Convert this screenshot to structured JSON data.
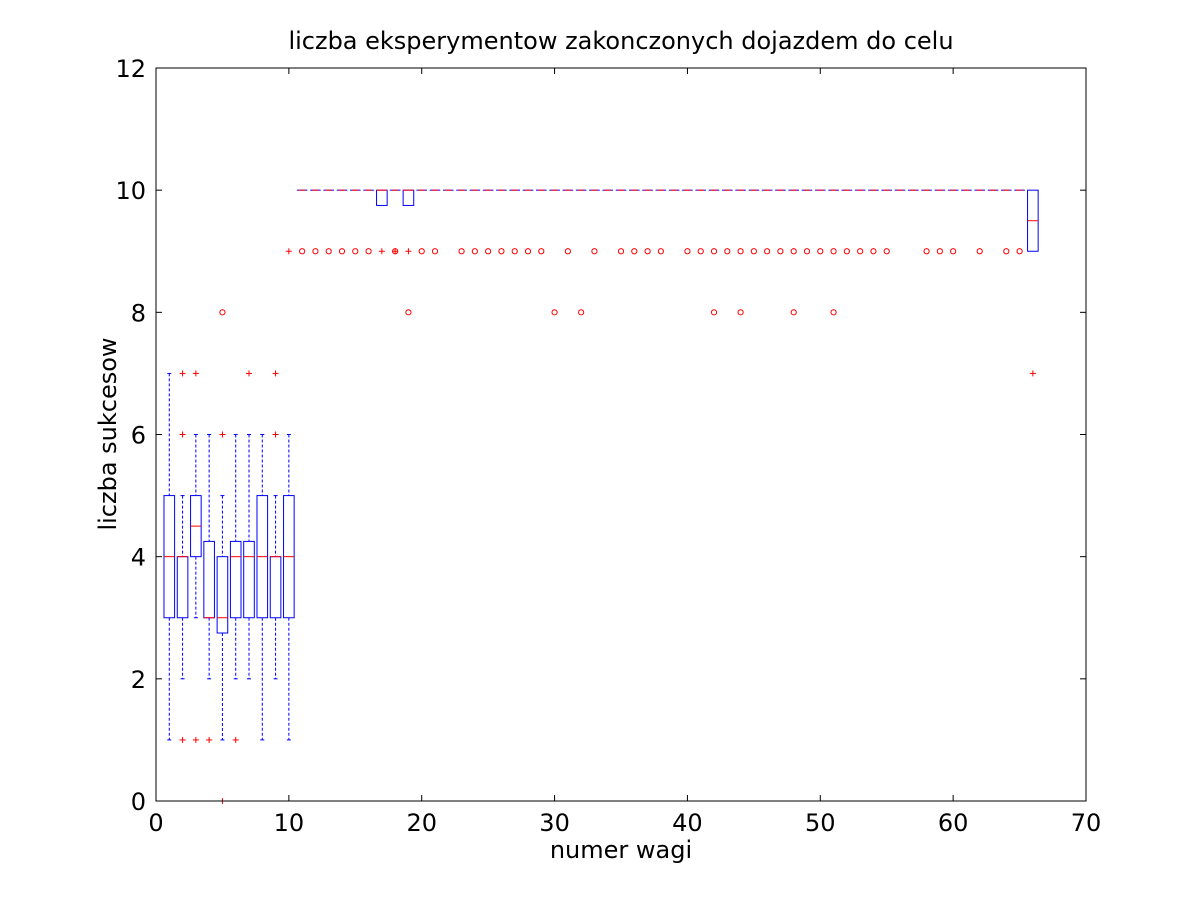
{
  "chart_data": {
    "type": "boxplot",
    "title": "liczba eksperymentow zakonczonych dojazdem do celu",
    "xlabel": "numer wagi",
    "ylabel": "liczba sukcesow",
    "xlim": [
      0,
      70
    ],
    "ylim": [
      0,
      12
    ],
    "xticks": [
      "0",
      "10",
      "20",
      "30",
      "40",
      "50",
      "60",
      "70"
    ],
    "yticks": [
      "0",
      "2",
      "4",
      "6",
      "8",
      "10",
      "12"
    ],
    "grid": false,
    "colors": {
      "box": "#0000ff",
      "median": "#ff0000",
      "outlier": "#ff0000",
      "frame": "#000000"
    },
    "boxes": [
      {
        "x": 1,
        "lowWhisker": 1,
        "q1": 3,
        "median": 4,
        "q3": 5,
        "highWhisker": 7
      },
      {
        "x": 2,
        "lowWhisker": 2,
        "q1": 3,
        "median": 4,
        "q3": 4,
        "highWhisker": 5
      },
      {
        "x": 3,
        "lowWhisker": 3,
        "q1": 4,
        "median": 4.5,
        "q3": 5,
        "highWhisker": 6
      },
      {
        "x": 4,
        "lowWhisker": 2,
        "q1": 3,
        "median": 3,
        "q3": 4.25,
        "highWhisker": 6
      },
      {
        "x": 5,
        "lowWhisker": 1,
        "q1": 2.75,
        "median": 3,
        "q3": 4,
        "highWhisker": 5
      },
      {
        "x": 6,
        "lowWhisker": 2,
        "q1": 3,
        "median": 4,
        "q3": 4.25,
        "highWhisker": 6
      },
      {
        "x": 7,
        "lowWhisker": 2,
        "q1": 3,
        "median": 4,
        "q3": 4.25,
        "highWhisker": 6
      },
      {
        "x": 8,
        "lowWhisker": 1,
        "q1": 3,
        "median": 4,
        "q3": 5,
        "highWhisker": 6
      },
      {
        "x": 9,
        "lowWhisker": 2,
        "q1": 3,
        "median": 4,
        "q3": 4,
        "highWhisker": 5
      },
      {
        "x": 10,
        "lowWhisker": 1,
        "q1": 3,
        "median": 4,
        "q3": 5,
        "highWhisker": 6
      },
      {
        "x": 17,
        "lowWhisker": 10,
        "q1": 9.75,
        "median": 10,
        "q3": 10,
        "highWhisker": 10
      },
      {
        "x": 19,
        "lowWhisker": 10,
        "q1": 9.75,
        "median": 10,
        "q3": 10,
        "highWhisker": 10
      },
      {
        "x": 66,
        "lowWhisker": 9,
        "q1": 9,
        "median": 9.5,
        "q3": 10,
        "highWhisker": 10
      }
    ],
    "constant_series": {
      "x_from": 11,
      "x_to": 65,
      "value": 10
    },
    "outliers_plus": [
      [
        2,
        7
      ],
      [
        3,
        7
      ],
      [
        2,
        6
      ],
      [
        2,
        1
      ],
      [
        3,
        1
      ],
      [
        4,
        1
      ],
      [
        5,
        6
      ],
      [
        5,
        0
      ],
      [
        6,
        1
      ],
      [
        7,
        7
      ],
      [
        9,
        7
      ],
      [
        9,
        6
      ],
      [
        10,
        9
      ],
      [
        17,
        9
      ],
      [
        18,
        9
      ],
      [
        19,
        9
      ],
      [
        66,
        7
      ]
    ],
    "outliers_circle": [
      [
        5,
        8
      ],
      [
        11,
        9
      ],
      [
        12,
        9
      ],
      [
        13,
        9
      ],
      [
        14,
        9
      ],
      [
        15,
        9
      ],
      [
        16,
        9
      ],
      [
        18,
        9
      ],
      [
        19,
        8
      ],
      [
        20,
        9
      ],
      [
        21,
        9
      ],
      [
        23,
        9
      ],
      [
        24,
        9
      ],
      [
        25,
        9
      ],
      [
        26,
        9
      ],
      [
        27,
        9
      ],
      [
        28,
        9
      ],
      [
        29,
        9
      ],
      [
        30,
        8
      ],
      [
        31,
        9
      ],
      [
        32,
        8
      ],
      [
        33,
        9
      ],
      [
        35,
        9
      ],
      [
        36,
        9
      ],
      [
        37,
        9
      ],
      [
        38,
        9
      ],
      [
        40,
        9
      ],
      [
        41,
        9
      ],
      [
        42,
        9
      ],
      [
        42,
        8
      ],
      [
        43,
        9
      ],
      [
        44,
        9
      ],
      [
        44,
        8
      ],
      [
        45,
        9
      ],
      [
        46,
        9
      ],
      [
        47,
        9
      ],
      [
        48,
        9
      ],
      [
        48,
        8
      ],
      [
        49,
        9
      ],
      [
        50,
        9
      ],
      [
        51,
        9
      ],
      [
        51,
        8
      ],
      [
        52,
        9
      ],
      [
        53,
        9
      ],
      [
        54,
        9
      ],
      [
        55,
        9
      ],
      [
        58,
        9
      ],
      [
        59,
        9
      ],
      [
        60,
        9
      ],
      [
        62,
        9
      ],
      [
        64,
        9
      ],
      [
        65,
        9
      ]
    ]
  }
}
